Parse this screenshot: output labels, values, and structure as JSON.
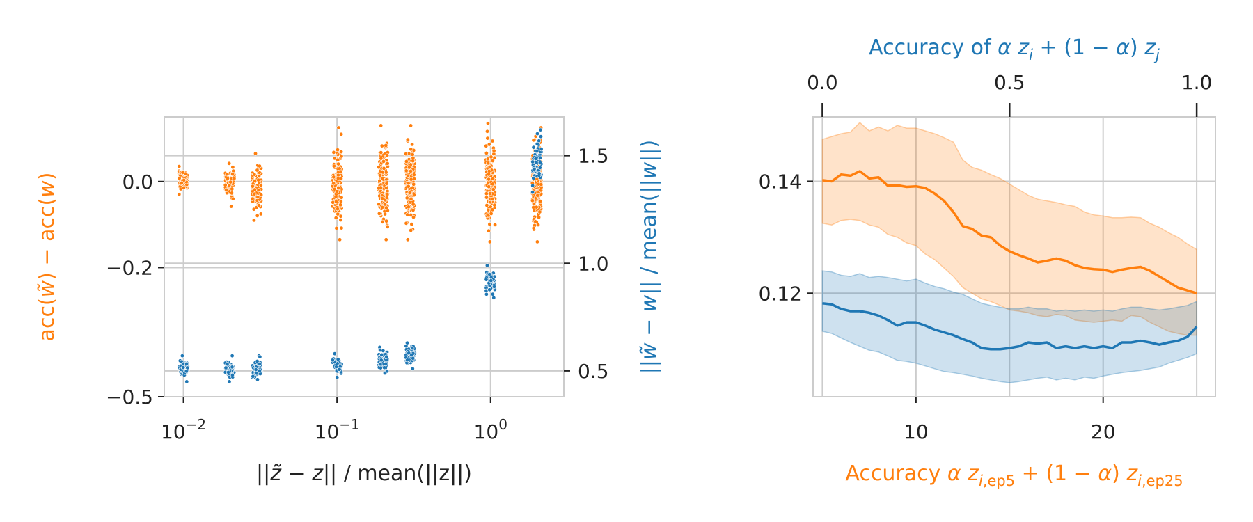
{
  "colors": {
    "orange": "#ff7f0e",
    "blue": "#1f77b4",
    "grid": "#cccccc",
    "axis": "#cccccc",
    "text": "#222222"
  },
  "chart_data": [
    {
      "type": "scatter",
      "xscale": "log",
      "xlim": [
        0.0075,
        3.0
      ],
      "x_ticks": [
        0.01,
        0.1,
        1
      ],
      "x_tick_labels": [
        {
          "base": "10",
          "exp": "−2"
        },
        {
          "base": "10",
          "exp": "−1"
        },
        {
          "base": "10",
          "exp": "0"
        }
      ],
      "xlabel": {
        "pre": "||",
        "sym": "z̃",
        "mid": " − ",
        "sym2": "z",
        "post": "|| / mean(||z||)"
      },
      "ylabel_left": {
        "a": "acc(",
        "b": "w̃",
        "c": ") − acc(",
        "d": "w",
        "e": ")"
      },
      "ylabel_right": {
        "a": "||",
        "b": "w̃",
        "c": " − ",
        "d": "w",
        "e": "|| / mean(||",
        "f": "w",
        "g": "||)"
      },
      "left_axis": {
        "ylim": [
          -0.5,
          0.15
        ],
        "ticks": [
          0.0,
          -0.2,
          -0.5
        ],
        "tick_labels": [
          "0.0",
          "−0.2",
          "−0.5"
        ]
      },
      "right_axis": {
        "ylim": [
          0.38,
          1.68
        ],
        "ticks": [
          1.5,
          1.0,
          0.5
        ],
        "tick_labels": [
          "1.5",
          "1.0",
          "0.5"
        ]
      },
      "grid": true,
      "series": [
        {
          "axis": "left",
          "color": "orange",
          "clusters": [
            {
              "x": 0.01,
              "low": -0.03,
              "high": 0.035,
              "count": 90
            },
            {
              "x": 0.02,
              "low": -0.058,
              "high": 0.042,
              "count": 90
            },
            {
              "x": 0.03,
              "low": -0.09,
              "high": 0.065,
              "count": 90
            },
            {
              "x": 0.1,
              "low": -0.135,
              "high": 0.125,
              "count": 160
            },
            {
              "x": 0.2,
              "low": -0.135,
              "high": 0.13,
              "count": 160
            },
            {
              "x": 0.3,
              "low": -0.135,
              "high": 0.13,
              "count": 160
            },
            {
              "x": 1.0,
              "low": -0.14,
              "high": 0.135,
              "count": 180
            },
            {
              "x": 2.0,
              "low": -0.14,
              "high": 0.125,
              "count": 180
            }
          ]
        },
        {
          "axis": "right",
          "color": "blue",
          "clusters": [
            {
              "x": 0.01,
              "low": 0.45,
              "high": 0.57,
              "count": 60
            },
            {
              "x": 0.02,
              "low": 0.45,
              "high": 0.57,
              "count": 60
            },
            {
              "x": 0.03,
              "low": 0.46,
              "high": 0.57,
              "count": 60
            },
            {
              "x": 0.1,
              "low": 0.47,
              "high": 0.58,
              "count": 60
            },
            {
              "x": 0.2,
              "low": 0.49,
              "high": 0.61,
              "count": 60
            },
            {
              "x": 0.3,
              "low": 0.51,
              "high": 0.63,
              "count": 60
            },
            {
              "x": 1.0,
              "low": 0.84,
              "high": 0.99,
              "count": 60
            },
            {
              "x": 2.0,
              "low": 1.33,
              "high": 1.62,
              "count": 70
            }
          ]
        }
      ]
    },
    {
      "type": "line",
      "xlim": [
        4.5,
        26.0
      ],
      "x_ticks": [
        10,
        20
      ],
      "x_tick_labels": [
        "10",
        "20"
      ],
      "ylim": [
        0.1015,
        0.1515
      ],
      "y_ticks": [
        0.14,
        0.12
      ],
      "y_tick_labels": [
        "0.14",
        "0.12"
      ],
      "top_axis": {
        "xlim": [
          -0.1,
          1.1
        ],
        "ticks": [
          0.0,
          0.5,
          1.0
        ],
        "tick_labels": [
          "0.0",
          "0.5",
          "1.0"
        ]
      },
      "xlabel_bottom": {
        "pre": "Accuracy ",
        "tail": ",ep5",
        "tail2": ",ep25"
      },
      "xlabel_top": {
        "pre": "Accuracy of "
      },
      "grid": true,
      "x": [
        5,
        5.5,
        6,
        6.5,
        7,
        7.5,
        8,
        8.5,
        9,
        9.5,
        10,
        10.5,
        11,
        11.5,
        12,
        12.5,
        13,
        13.5,
        14,
        14.5,
        15,
        15.5,
        16,
        16.5,
        17,
        17.5,
        18,
        18.5,
        19,
        19.5,
        20,
        20.5,
        21,
        21.5,
        22,
        22.5,
        23,
        23.5,
        24,
        24.5,
        25
      ],
      "series": [
        {
          "color": "orange",
          "values": [
            0.1402,
            0.14,
            0.1412,
            0.141,
            0.1418,
            0.1405,
            0.1407,
            0.1392,
            0.1393,
            0.139,
            0.1391,
            0.1388,
            0.1378,
            0.1365,
            0.1345,
            0.132,
            0.1315,
            0.1303,
            0.13,
            0.1285,
            0.1275,
            0.1268,
            0.1262,
            0.1255,
            0.1258,
            0.1262,
            0.1258,
            0.125,
            0.1245,
            0.1243,
            0.1242,
            0.1238,
            0.1242,
            0.1245,
            0.1247,
            0.124,
            0.123,
            0.122,
            0.121,
            0.1205,
            0.12
          ],
          "low": [
            0.1325,
            0.1322,
            0.133,
            0.1332,
            0.133,
            0.1322,
            0.1318,
            0.1305,
            0.13,
            0.129,
            0.1285,
            0.127,
            0.126,
            0.1245,
            0.123,
            0.121,
            0.12,
            0.119,
            0.1185,
            0.1178,
            0.117,
            0.1168,
            0.1165,
            0.116,
            0.1158,
            0.1162,
            0.116,
            0.1152,
            0.115,
            0.1148,
            0.115,
            0.1152,
            0.115,
            0.116,
            0.1158,
            0.1148,
            0.114,
            0.1132,
            0.1128,
            0.1125,
            0.1125
          ],
          "high": [
            0.1475,
            0.148,
            0.1485,
            0.1488,
            0.1505,
            0.149,
            0.1497,
            0.149,
            0.15,
            0.1495,
            0.1495,
            0.149,
            0.1485,
            0.1478,
            0.147,
            0.1438,
            0.1425,
            0.142,
            0.1412,
            0.1405,
            0.1395,
            0.1385,
            0.1375,
            0.1368,
            0.1365,
            0.1362,
            0.1358,
            0.1355,
            0.1345,
            0.134,
            0.1338,
            0.1335,
            0.1335,
            0.1336,
            0.1335,
            0.1325,
            0.1318,
            0.1308,
            0.13,
            0.1288,
            0.1278
          ]
        },
        {
          "color": "blue",
          "values": [
            0.1182,
            0.118,
            0.1172,
            0.1168,
            0.1168,
            0.1165,
            0.116,
            0.1152,
            0.1142,
            0.1148,
            0.1148,
            0.1142,
            0.1135,
            0.113,
            0.1125,
            0.1118,
            0.1112,
            0.1102,
            0.11,
            0.11,
            0.1102,
            0.1105,
            0.1112,
            0.111,
            0.1112,
            0.1102,
            0.1105,
            0.1102,
            0.1105,
            0.1102,
            0.1105,
            0.1102,
            0.1112,
            0.1112,
            0.1115,
            0.1112,
            0.1108,
            0.1112,
            0.1115,
            0.1122,
            0.114
          ],
          "low": [
            0.1132,
            0.1128,
            0.112,
            0.1112,
            0.1105,
            0.1098,
            0.1095,
            0.1088,
            0.108,
            0.1078,
            0.1075,
            0.107,
            0.1065,
            0.106,
            0.1058,
            0.1055,
            0.1052,
            0.1048,
            0.1045,
            0.1042,
            0.104,
            0.1042,
            0.1045,
            0.1048,
            0.105,
            0.1045,
            0.1048,
            0.1045,
            0.105,
            0.1048,
            0.1052,
            0.1055,
            0.1058,
            0.106,
            0.1062,
            0.1065,
            0.1068,
            0.1075,
            0.108,
            0.1085,
            0.1092
          ],
          "high": [
            0.124,
            0.1238,
            0.1232,
            0.123,
            0.1235,
            0.1228,
            0.123,
            0.1228,
            0.1225,
            0.1222,
            0.1225,
            0.1218,
            0.1212,
            0.1208,
            0.1202,
            0.1198,
            0.119,
            0.1182,
            0.1178,
            0.1175,
            0.1172,
            0.1172,
            0.1175,
            0.1172,
            0.1172,
            0.1168,
            0.117,
            0.1168,
            0.117,
            0.1168,
            0.117,
            0.1168,
            0.1172,
            0.1175,
            0.1175,
            0.1172,
            0.117,
            0.1172,
            0.1175,
            0.1178,
            0.1185
          ]
        }
      ]
    }
  ]
}
